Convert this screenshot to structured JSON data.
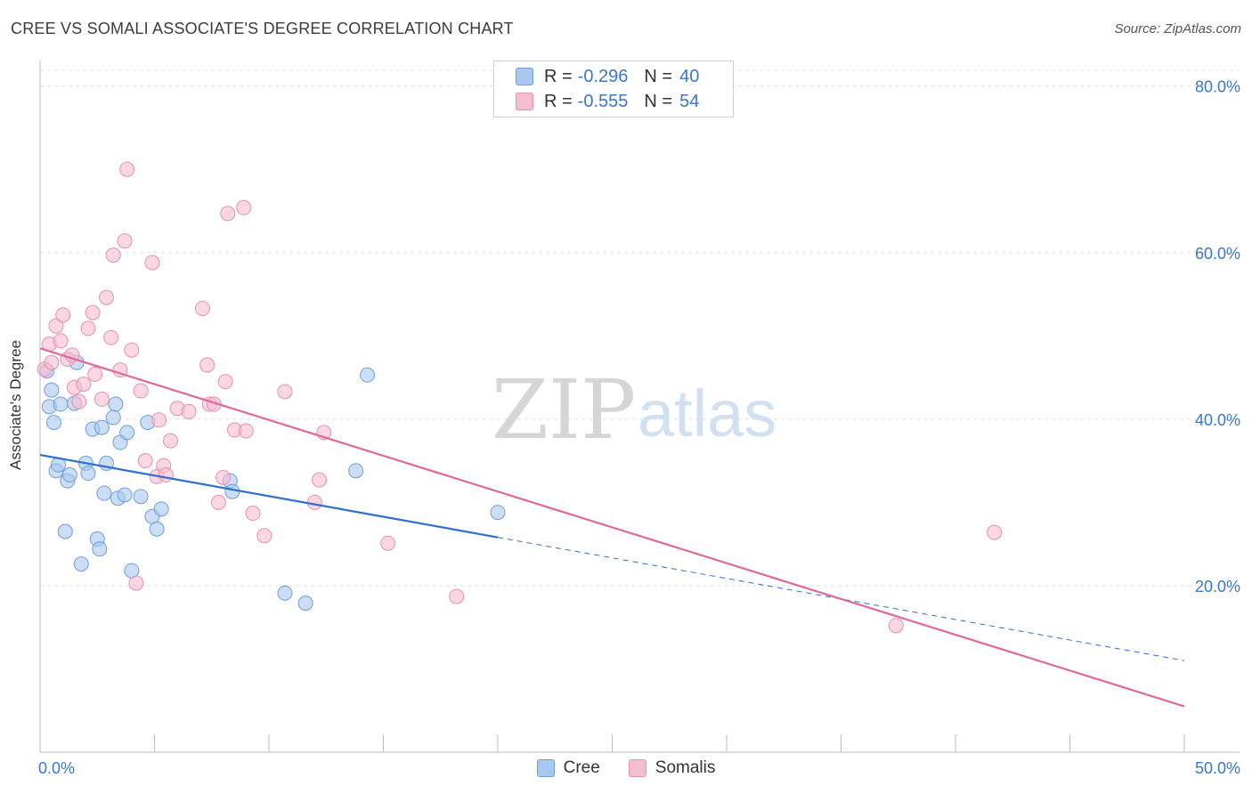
{
  "title": "CREE VS SOMALI ASSOCIATE'S DEGREE CORRELATION CHART",
  "source": "Source: ZipAtlas.com",
  "watermark": {
    "zip": "ZIP",
    "atlas": "atlas"
  },
  "legend": {
    "rows": [
      {
        "r_label": "R =",
        "r_value": "-0.296",
        "n_label": "N =",
        "n_value": "40",
        "color": "#a9c8ef",
        "border": "#6d9fdc"
      },
      {
        "r_label": "R =",
        "r_value": "-0.555",
        "n_label": "N =",
        "n_value": "54",
        "color": "#f6bdd0",
        "border": "#e990ae"
      }
    ]
  },
  "bottom_legend": [
    {
      "label": "Cree",
      "color": "#a9c8ef",
      "border": "#6d9fdc"
    },
    {
      "label": "Somalis",
      "color": "#f6bdd0",
      "border": "#e990ae"
    }
  ],
  "chart_data": {
    "type": "scatter",
    "xlabel": "",
    "ylabel": "Associate's Degree",
    "xlim": [
      0,
      50
    ],
    "ylim": [
      0,
      82
    ],
    "x_tick_labels": [
      {
        "value": 0,
        "label": "0.0%"
      },
      {
        "value": 50,
        "label": "50.0%"
      }
    ],
    "x_minor_ticks": [
      5,
      10,
      15,
      20,
      25,
      30,
      35,
      40,
      45,
      50
    ],
    "y_ticks": [
      {
        "value": 20,
        "label": "20.0%"
      },
      {
        "value": 40,
        "label": "40.0%"
      },
      {
        "value": 60,
        "label": "60.0%"
      },
      {
        "value": 80,
        "label": "80.0%"
      }
    ],
    "grid": true,
    "series": [
      {
        "name": "Cree",
        "color": "#a9c8ef",
        "stroke": "#6d9fdc",
        "line_color": "#2f6fd0",
        "trend": {
          "x0": 0,
          "y0": 35.7,
          "x1": 20,
          "y1": 25.8,
          "dash_to_x": 50,
          "dash_to_y": 11.0
        },
        "points": [
          [
            0.3,
            45.8
          ],
          [
            0.4,
            41.5
          ],
          [
            0.5,
            43.5
          ],
          [
            0.6,
            39.6
          ],
          [
            0.7,
            33.8
          ],
          [
            0.8,
            34.5
          ],
          [
            0.9,
            41.8
          ],
          [
            1.1,
            26.5
          ],
          [
            1.2,
            32.6
          ],
          [
            1.3,
            33.3
          ],
          [
            1.5,
            41.9
          ],
          [
            1.6,
            46.8
          ],
          [
            1.8,
            22.6
          ],
          [
            2.0,
            34.7
          ],
          [
            2.1,
            33.5
          ],
          [
            2.3,
            38.8
          ],
          [
            2.5,
            25.6
          ],
          [
            2.6,
            24.4
          ],
          [
            2.7,
            39.0
          ],
          [
            2.8,
            31.1
          ],
          [
            2.9,
            34.7
          ],
          [
            3.2,
            40.2
          ],
          [
            3.3,
            41.8
          ],
          [
            3.4,
            30.5
          ],
          [
            3.5,
            37.2
          ],
          [
            3.7,
            30.9
          ],
          [
            3.8,
            38.4
          ],
          [
            4.0,
            21.8
          ],
          [
            4.4,
            30.7
          ],
          [
            4.7,
            39.6
          ],
          [
            4.9,
            28.3
          ],
          [
            5.1,
            26.8
          ],
          [
            5.3,
            29.2
          ],
          [
            8.3,
            32.6
          ],
          [
            8.4,
            31.3
          ],
          [
            10.7,
            19.1
          ],
          [
            11.6,
            17.9
          ],
          [
            13.8,
            33.8
          ],
          [
            14.3,
            45.3
          ],
          [
            20.0,
            28.8
          ]
        ]
      },
      {
        "name": "Somalis",
        "color": "#f6bdd0",
        "stroke": "#e990ae",
        "line_color": "#e0699a",
        "trend": {
          "x0": 0,
          "y0": 48.5,
          "x1": 50,
          "y1": 5.5
        },
        "points": [
          [
            0.2,
            46.0
          ],
          [
            0.4,
            49.0
          ],
          [
            0.5,
            46.8
          ],
          [
            0.7,
            51.2
          ],
          [
            0.9,
            49.4
          ],
          [
            1.0,
            52.5
          ],
          [
            1.2,
            47.2
          ],
          [
            1.4,
            47.7
          ],
          [
            1.5,
            43.8
          ],
          [
            1.7,
            42.1
          ],
          [
            1.9,
            44.2
          ],
          [
            2.1,
            50.9
          ],
          [
            2.3,
            52.8
          ],
          [
            2.4,
            45.4
          ],
          [
            2.7,
            42.4
          ],
          [
            2.9,
            54.6
          ],
          [
            3.1,
            49.8
          ],
          [
            3.2,
            59.7
          ],
          [
            3.5,
            45.9
          ],
          [
            3.7,
            61.4
          ],
          [
            3.8,
            70.0
          ],
          [
            4.0,
            48.3
          ],
          [
            4.2,
            20.3
          ],
          [
            4.4,
            43.4
          ],
          [
            4.6,
            35.0
          ],
          [
            4.9,
            58.8
          ],
          [
            5.1,
            33.1
          ],
          [
            5.2,
            39.9
          ],
          [
            5.4,
            34.4
          ],
          [
            5.5,
            33.3
          ],
          [
            5.7,
            37.4
          ],
          [
            6.0,
            41.3
          ],
          [
            6.5,
            40.9
          ],
          [
            7.1,
            53.3
          ],
          [
            7.3,
            46.5
          ],
          [
            7.4,
            41.8
          ],
          [
            7.6,
            41.8
          ],
          [
            7.8,
            30.0
          ],
          [
            8.0,
            33.0
          ],
          [
            8.1,
            44.5
          ],
          [
            8.2,
            64.7
          ],
          [
            8.5,
            38.7
          ],
          [
            8.9,
            65.4
          ],
          [
            9.0,
            38.6
          ],
          [
            9.3,
            28.7
          ],
          [
            9.8,
            26.0
          ],
          [
            10.7,
            43.3
          ],
          [
            12.0,
            30.0
          ],
          [
            12.2,
            32.7
          ],
          [
            12.4,
            38.4
          ],
          [
            15.2,
            25.1
          ],
          [
            18.2,
            18.7
          ],
          [
            37.4,
            15.2
          ],
          [
            41.7,
            26.4
          ]
        ]
      }
    ]
  }
}
